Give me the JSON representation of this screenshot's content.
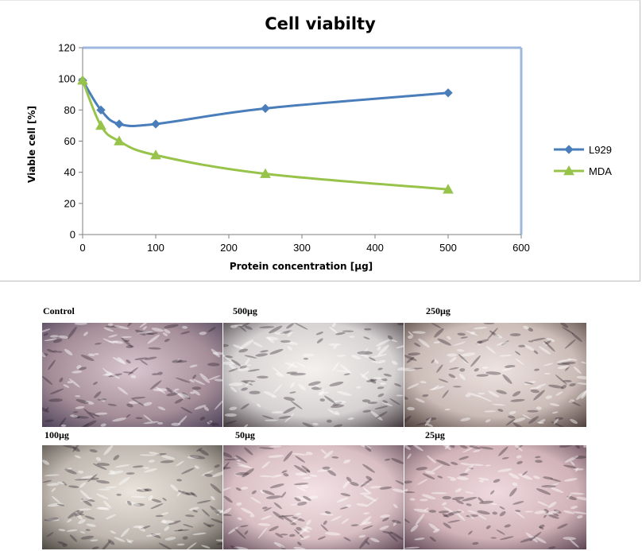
{
  "chart_data": {
    "type": "line",
    "title": "Cell viabilty",
    "xlabel": "Protein concentration [µg]",
    "ylabel": "Viable cell [%]",
    "xlim": [
      0,
      600
    ],
    "ylim": [
      0,
      120
    ],
    "xticks": [
      0,
      100,
      200,
      300,
      400,
      500,
      600
    ],
    "yticks": [
      0,
      20,
      40,
      60,
      80,
      100,
      120
    ],
    "legend_position": "right",
    "series": [
      {
        "name": "L929",
        "color": "#4a7ebb",
        "marker": "diamond",
        "x": [
          0,
          25,
          50,
          100,
          250,
          500
        ],
        "y": [
          99,
          80,
          71,
          71,
          81,
          91
        ]
      },
      {
        "name": "MDA",
        "color": "#98c34a",
        "marker": "triangle",
        "x": [
          0,
          25,
          50,
          100,
          250,
          500
        ],
        "y": [
          99,
          70,
          60,
          51,
          39,
          29
        ]
      }
    ]
  },
  "micrographs": [
    {
      "label": "Control",
      "tone": "#a58e98",
      "dark": "#4a3f58",
      "light": "#d9c6cf"
    },
    {
      "label": "500µg",
      "tone": "#d6d2d2",
      "dark": "#3c3338",
      "light": "#f4f1ee"
    },
    {
      "label": "250µg",
      "tone": "#cbbcb7",
      "dark": "#4d3d3a",
      "light": "#eee3e1"
    },
    {
      "label": "100µg",
      "tone": "#c0b8b0",
      "dark": "#4a4540",
      "light": "#e9e4dc"
    },
    {
      "label": "50µg",
      "tone": "#d9bfc4",
      "dark": "#5e4755",
      "light": "#f3e2e6"
    },
    {
      "label": "25µg",
      "tone": "#d1b3b9",
      "dark": "#5a4250",
      "light": "#efdadf"
    }
  ]
}
